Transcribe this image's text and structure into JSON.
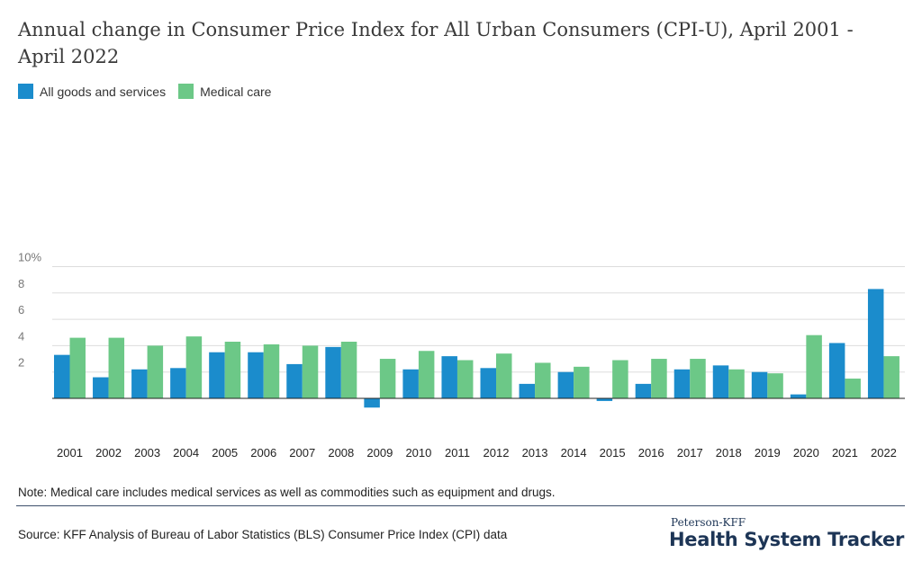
{
  "colors": {
    "all_goods": "#1b8ccc",
    "medical": "#6cc887",
    "grid": "#dddddd",
    "axis": "#222222",
    "tick": "#777777"
  },
  "chart_data": {
    "type": "bar",
    "title": "Annual change in Consumer Price Index for All Urban Consumers (CPI-U), April 2001 - April 2022",
    "xlabel": "",
    "ylabel": "",
    "ylim": [
      -1,
      10
    ],
    "yticks": [
      2,
      4,
      6,
      8,
      10
    ],
    "ytick_labels": [
      "2",
      "4",
      "6",
      "8",
      "10%"
    ],
    "legend_position": "top-left",
    "grid": true,
    "categories": [
      "2001",
      "2002",
      "2003",
      "2004",
      "2005",
      "2006",
      "2007",
      "2008",
      "2009",
      "2010",
      "2011",
      "2012",
      "2013",
      "2014",
      "2015",
      "2016",
      "2017",
      "2018",
      "2019",
      "2020",
      "2021",
      "2022"
    ],
    "series": [
      {
        "name": "All goods and services",
        "values": [
          3.3,
          1.6,
          2.2,
          2.3,
          3.5,
          3.5,
          2.6,
          3.9,
          -0.7,
          2.2,
          3.2,
          2.3,
          1.1,
          2.0,
          -0.2,
          1.1,
          2.2,
          2.5,
          2.0,
          0.3,
          4.2,
          8.3
        ]
      },
      {
        "name": "Medical care",
        "values": [
          4.6,
          4.6,
          4.0,
          4.7,
          4.3,
          4.1,
          4.0,
          4.3,
          3.0,
          3.6,
          2.9,
          3.4,
          2.7,
          2.4,
          2.9,
          3.0,
          3.0,
          2.2,
          1.9,
          4.8,
          1.5,
          3.2
        ]
      }
    ]
  },
  "note": "Note: Medical care includes medical services as well as commodities such as equipment and drugs.",
  "source": "Source: KFF Analysis of Bureau of Labor Statistics (BLS) Consumer Price Index (CPI) data",
  "brand": {
    "sub": "Peterson-KFF",
    "main": "Health System Tracker"
  }
}
